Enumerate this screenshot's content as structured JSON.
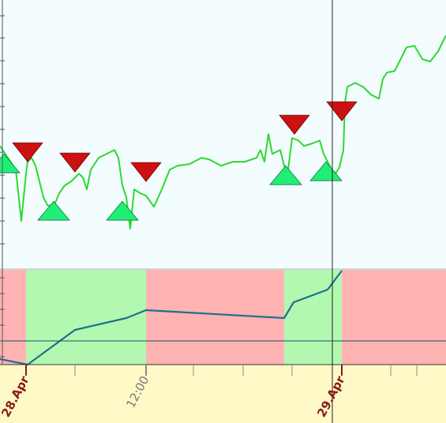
{
  "chart_data": {
    "type": "line",
    "x": [
      0,
      2,
      4,
      5.4,
      6.6,
      7,
      8,
      9,
      10,
      11,
      12,
      13.6,
      15,
      16.4,
      18,
      20,
      21,
      22,
      23,
      25,
      27,
      29,
      30,
      31,
      32,
      33,
      34,
      35.6,
      37,
      39,
      41,
      43,
      45,
      48,
      51,
      53,
      56,
      59,
      62,
      65,
      66,
      67,
      68,
      69,
      71,
      72,
      73,
      74,
      75.6,
      77,
      79,
      81,
      82,
      83,
      84,
      85,
      86,
      87,
      87.4,
      88,
      90,
      92,
      94,
      96,
      97,
      98,
      100,
      102,
      103,
      105,
      107,
      109,
      111,
      113
    ],
    "values": [
      155,
      140,
      125,
      60,
      120,
      135,
      140,
      130,
      110,
      90,
      80,
      78,
      95,
      105,
      110,
      120,
      115,
      100,
      125,
      140,
      145,
      150,
      140,
      105,
      90,
      50,
      100,
      95,
      92,
      78,
      100,
      125,
      130,
      132,
      140,
      138,
      130,
      135,
      135,
      140,
      150,
      135,
      170,
      145,
      150,
      130,
      125,
      165,
      162,
      155,
      158,
      162,
      145,
      135,
      125,
      120,
      128,
      150,
      210,
      230,
      235,
      230,
      220,
      215,
      240,
      248,
      250,
      270,
      280,
      282,
      265,
      262,
      275,
      295
    ],
    "color": "#2fd82f",
    "xlim": [
      0,
      113
    ],
    "ylim": [
      0,
      340
    ],
    "yticks": [
      31,
      60,
      89,
      118,
      147,
      176,
      205,
      234,
      263,
      292,
      320
    ],
    "xticks": [
      {
        "value": 6.6,
        "label": "28.Apr"
      },
      {
        "value": 37,
        "label": "12:00"
      },
      {
        "value": 86.6,
        "label": "29.Apr"
      }
    ],
    "minor_xticks": [
      19,
      49,
      61.6,
      74,
      99,
      105.6
    ],
    "sell_signals": {
      "x": [
        7,
        19,
        37,
        74.6,
        86.6
      ],
      "values": [
        135,
        122,
        110,
        170,
        187
      ],
      "color": "#cc1111"
    },
    "buy_signals": {
      "x": [
        1,
        13.6,
        31,
        72.4,
        82.6
      ],
      "values": [
        145,
        85,
        85,
        130,
        135
      ],
      "color": "#22ee77"
    },
    "indicator": {
      "x": [
        0,
        7,
        19,
        32,
        37,
        72,
        74.4,
        83,
        86.6
      ],
      "values": [
        7,
        0,
        44,
        59,
        69,
        59,
        79,
        95,
        119
      ],
      "color": "#1f6f8f",
      "ylim": [
        0,
        120
      ],
      "yticks": [
        10,
        30,
        50,
        70,
        90,
        110
      ],
      "zones": [
        {
          "x0": 0,
          "x1": 6.6,
          "color": "#ffb3b3"
        },
        {
          "x0": 6.6,
          "x1": 37,
          "color": "#b3f8b0"
        },
        {
          "x0": 37,
          "x1": 72,
          "color": "#ffb3b3"
        },
        {
          "x0": 72,
          "x1": 86.6,
          "color": "#b3f8b0"
        },
        {
          "x0": 86.6,
          "x1": 113,
          "color": "#ffb3b3"
        }
      ]
    }
  }
}
